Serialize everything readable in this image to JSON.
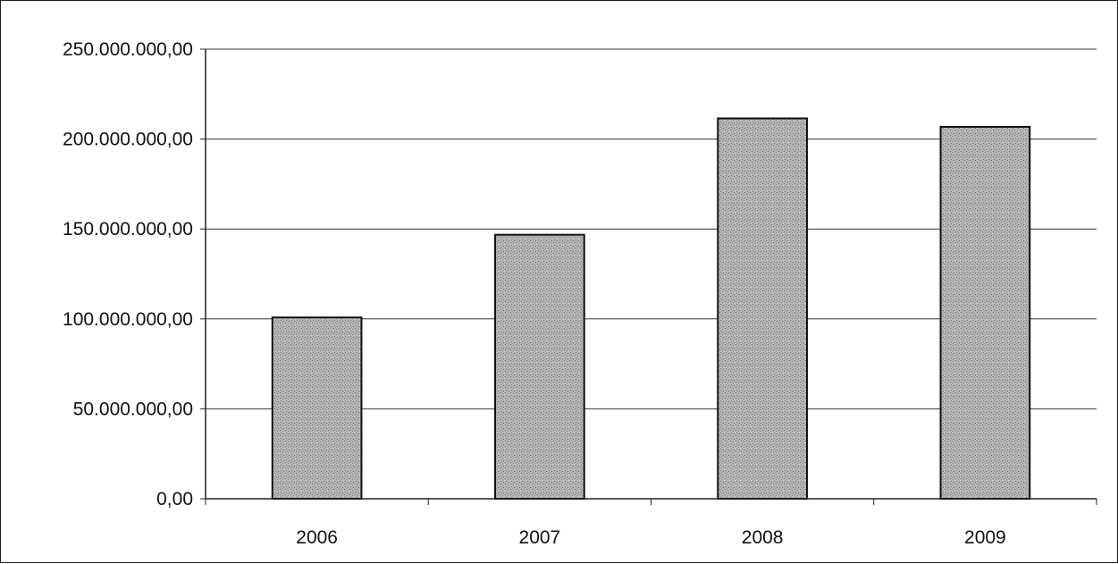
{
  "chart_data": {
    "type": "bar",
    "title": "",
    "xlabel": "",
    "ylabel": "",
    "categories": [
      "2006",
      "2007",
      "2008",
      "2009"
    ],
    "values": [
      100800000,
      146800000,
      211500000,
      206800000
    ],
    "ylim": [
      0,
      250000000
    ],
    "y_ticks": [
      {
        "value": 0,
        "label": "0,00"
      },
      {
        "value": 50000000,
        "label": "50.000.000,00"
      },
      {
        "value": 100000000,
        "label": "100.000.000,00"
      },
      {
        "value": 150000000,
        "label": "150.000.000,00"
      },
      {
        "value": 200000000,
        "label": "200.000.000,00"
      },
      {
        "value": 250000000,
        "label": "250.000.000,00"
      }
    ],
    "grid": true,
    "legend": "none",
    "bar_color": "#a9a9a9",
    "bar_edge_color": "#111111"
  }
}
